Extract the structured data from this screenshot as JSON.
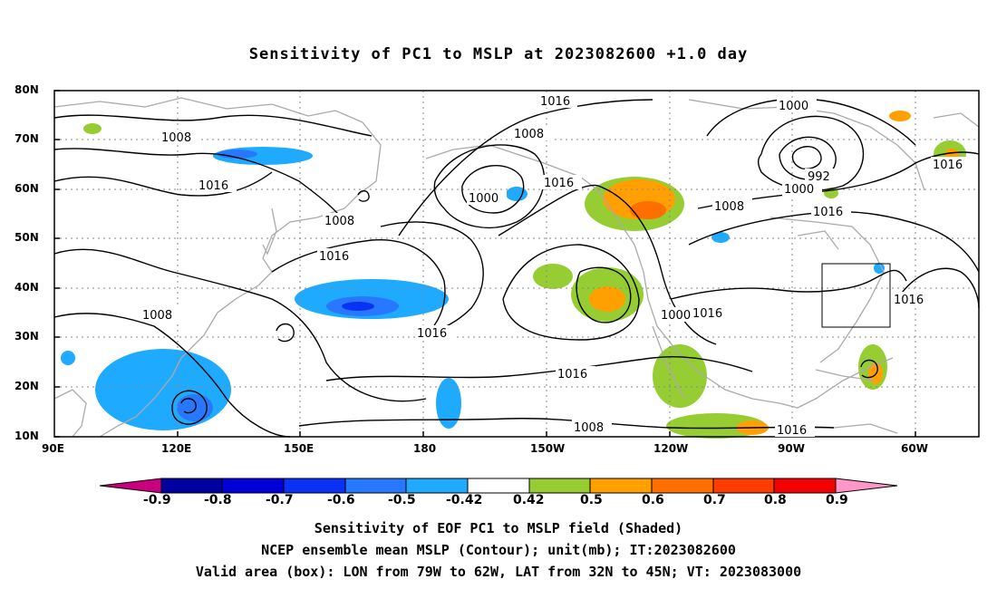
{
  "title": "Sensitivity of PC1 to MSLP at 2023082600 +1.0 day",
  "axes": {
    "lat_labels": [
      "80N",
      "70N",
      "60N",
      "50N",
      "40N",
      "30N",
      "20N",
      "10N"
    ],
    "lon_labels": [
      "90E",
      "120E",
      "150E",
      "180",
      "150W",
      "120W",
      "90W",
      "60W"
    ]
  },
  "contour_labels": {
    "l1016a": "1016",
    "l1008a": "1008",
    "l1000a": "1000",
    "l1016b": "1016",
    "l1008b": "1008",
    "l1016c": "1016",
    "l1000b": "1000",
    "l1016d": "1016",
    "l1008c": "1008",
    "l1016e": "1016",
    "l992": "992",
    "l1000c": "1000",
    "l1016f": "1016",
    "l1016g": "1016",
    "l1008d": "1008",
    "l1016h": "1016",
    "l1000d": "1000",
    "l1016i": "1016",
    "l1016j": "1016",
    "l1008e": "1008",
    "l1008f": "1008",
    "l1016k": "1016"
  },
  "colorbar": {
    "levels": [
      "-0.9",
      "-0.8",
      "-0.7",
      "-0.6",
      "-0.5",
      "-0.42",
      "0.42",
      "0.5",
      "0.6",
      "0.7",
      "0.8",
      "0.9"
    ],
    "colors": [
      "#c8007e",
      "#0000a0",
      "#0000d8",
      "#0a32f5",
      "#2878ff",
      "#1eaaff",
      "#00c8ff",
      "#ffffff",
      "#96cd32",
      "#ffa000",
      "#ff6e00",
      "#ff3c00",
      "#f50000",
      "#ff96c8"
    ]
  },
  "captions": {
    "line1": "Sensitivity of EOF PC1 to MSLP field (Shaded)",
    "line2": "NCEP ensemble mean MSLP (Contour); unit(mb); IT:2023082600",
    "line3": "Valid area (box): LON from 79W to 62W, LAT from 32N to 45N; VT: 2023083000"
  }
}
